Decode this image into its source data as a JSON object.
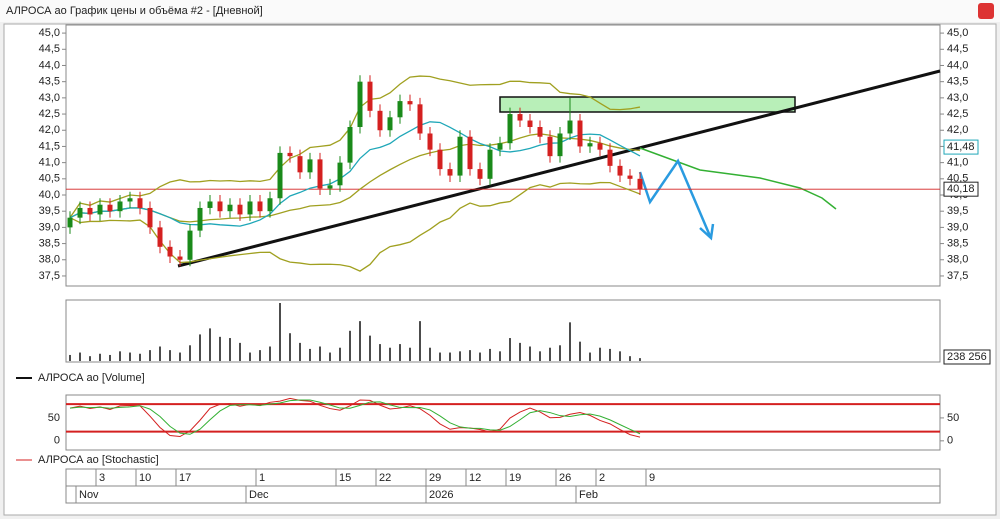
{
  "window_title": "АЛРОСА ао График цены и объёма #2 - [Дневной]",
  "chart_data": {
    "type": "candlestick",
    "open": [
      39.0,
      39.3,
      39.6,
      39.4,
      39.7,
      39.5,
      39.8,
      39.9,
      39.6,
      39.0,
      38.4,
      38.1,
      38.0,
      38.9,
      39.6,
      39.8,
      39.5,
      39.7,
      39.4,
      39.8,
      39.5,
      39.9,
      41.3,
      41.2,
      40.7,
      41.1,
      40.2,
      40.3,
      41.0,
      42.1,
      43.5,
      42.6,
      42.0,
      42.4,
      42.9,
      42.8,
      41.9,
      41.4,
      40.8,
      40.6,
      41.8,
      40.8,
      40.5,
      41.4,
      41.6,
      42.5,
      42.3,
      42.1,
      41.8,
      41.2,
      41.9,
      42.3,
      41.5,
      41.6,
      41.4,
      40.9,
      40.6,
      40.5
    ],
    "high": [
      39.5,
      39.8,
      39.8,
      39.9,
      39.9,
      40.0,
      40.1,
      40.1,
      39.8,
      39.2,
      38.6,
      38.3,
      39.1,
      39.8,
      40.0,
      40.0,
      39.9,
      39.9,
      40.0,
      40.0,
      40.1,
      41.5,
      41.5,
      41.4,
      41.3,
      41.3,
      40.5,
      41.2,
      42.3,
      43.7,
      43.7,
      42.8,
      42.6,
      43.1,
      43.1,
      43.0,
      42.1,
      41.6,
      41.0,
      42.0,
      42.0,
      41.0,
      41.6,
      41.8,
      42.7,
      42.7,
      42.5,
      42.3,
      42.0,
      42.1,
      43.0,
      42.5,
      41.8,
      41.8,
      41.6,
      41.1,
      40.8,
      40.7
    ],
    "low": [
      38.8,
      39.1,
      39.2,
      39.2,
      39.3,
      39.3,
      39.6,
      39.4,
      38.8,
      38.2,
      37.9,
      37.8,
      37.8,
      38.7,
      39.4,
      39.3,
      39.3,
      39.2,
      39.2,
      39.3,
      39.3,
      39.7,
      41.0,
      40.5,
      40.5,
      40.0,
      40.0,
      40.1,
      40.8,
      41.9,
      42.4,
      41.8,
      41.8,
      42.2,
      42.6,
      41.7,
      41.2,
      40.6,
      40.4,
      40.4,
      40.6,
      40.3,
      40.3,
      41.2,
      41.4,
      42.1,
      41.9,
      41.6,
      41.0,
      41.0,
      41.7,
      41.3,
      41.3,
      41.2,
      40.7,
      40.4,
      40.3,
      40.0
    ],
    "close": [
      39.3,
      39.6,
      39.4,
      39.7,
      39.5,
      39.8,
      39.9,
      39.6,
      39.0,
      38.4,
      38.1,
      38.0,
      38.9,
      39.6,
      39.8,
      39.5,
      39.7,
      39.4,
      39.8,
      39.5,
      39.9,
      41.3,
      41.2,
      40.7,
      41.1,
      40.2,
      40.3,
      41.0,
      42.1,
      43.5,
      42.6,
      42.0,
      42.4,
      42.9,
      42.8,
      41.9,
      41.4,
      40.8,
      40.6,
      41.8,
      40.8,
      40.5,
      41.4,
      41.6,
      42.5,
      42.3,
      42.1,
      41.8,
      41.2,
      41.9,
      42.3,
      41.5,
      41.6,
      41.4,
      40.9,
      40.6,
      40.5,
      40.18
    ],
    "up_color": "#1a8a1a",
    "down_color": "#d42020",
    "ylim": [
      37.19,
      45.25
    ],
    "yticks": [
      {
        "value": 37.5,
        "label": "37,5"
      },
      {
        "value": 38.0,
        "label": "38,0"
      },
      {
        "value": 38.5,
        "label": "38,5"
      },
      {
        "value": 39.0,
        "label": "39,0"
      },
      {
        "value": 39.5,
        "label": "39,5"
      },
      {
        "value": 40.0,
        "label": "40,0"
      },
      {
        "value": 40.5,
        "label": "40,5"
      },
      {
        "value": 41.0,
        "label": "41,0"
      },
      {
        "value": 41.5,
        "label": "41,5"
      },
      {
        "value": 42.0,
        "label": "42,0"
      },
      {
        "value": 42.5,
        "label": "42,5"
      },
      {
        "value": 43.0,
        "label": "43,0"
      },
      {
        "value": 43.5,
        "label": "43,5"
      },
      {
        "value": 44.0,
        "label": "44,0"
      },
      {
        "value": 44.5,
        "label": "44,5"
      },
      {
        "value": 45.0,
        "label": "45,0"
      }
    ],
    "price_labels": [
      {
        "value": 41.48,
        "label": "41,48",
        "color": "#1fa7b8"
      },
      {
        "value": 40.18,
        "label": "40,18",
        "color": "#222222"
      }
    ],
    "volume": {
      "name": "АЛРОСА ао [Volume]",
      "color": "#111111",
      "values": [
        500000,
        700000,
        400000,
        600000,
        500000,
        800000,
        700000,
        600000,
        900000,
        1200000,
        900000,
        700000,
        1300000,
        2200000,
        2700000,
        2000000,
        1900000,
        1500000,
        700000,
        900000,
        1200000,
        4800000,
        2300000,
        1500000,
        1000000,
        1200000,
        700000,
        1100000,
        2500000,
        3300000,
        2100000,
        1400000,
        1100000,
        1400000,
        1100000,
        3300000,
        1100000,
        700000,
        700000,
        800000,
        900000,
        700000,
        1000000,
        800000,
        1900000,
        1500000,
        1200000,
        800000,
        1100000,
        1300000,
        3200000,
        1600000,
        700000,
        1100000,
        1000000,
        800000,
        400000,
        238256
      ],
      "last_label": "238 256"
    },
    "stochastic": {
      "name": "АЛРОСА ао [Stochastic]",
      "k_color": "#d42020",
      "d_color": "#33b033",
      "ylim": [
        -20,
        100
      ],
      "yticks": [
        0,
        50
      ],
      "levels": [
        20,
        80
      ]
    },
    "day_labels": [
      {
        "index": 3,
        "label": "3"
      },
      {
        "index": 7,
        "label": "10"
      },
      {
        "index": 11,
        "label": "17"
      },
      {
        "index": 19,
        "label": "1"
      },
      {
        "index": 27,
        "label": "15"
      },
      {
        "index": 31,
        "label": "22"
      },
      {
        "index": 36,
        "label": "29"
      },
      {
        "index": 40,
        "label": "12"
      },
      {
        "index": 44,
        "label": "19"
      },
      {
        "index": 49,
        "label": "26"
      },
      {
        "index": 53,
        "label": "2"
      },
      {
        "index": 58,
        "label": "9"
      }
    ],
    "month_labels": [
      {
        "index": 2,
        "label": "Nov"
      },
      {
        "index": 19,
        "label": "Dec"
      },
      {
        "index": 37,
        "label": "2026"
      },
      {
        "index": 52,
        "label": "Feb"
      }
    ]
  }
}
